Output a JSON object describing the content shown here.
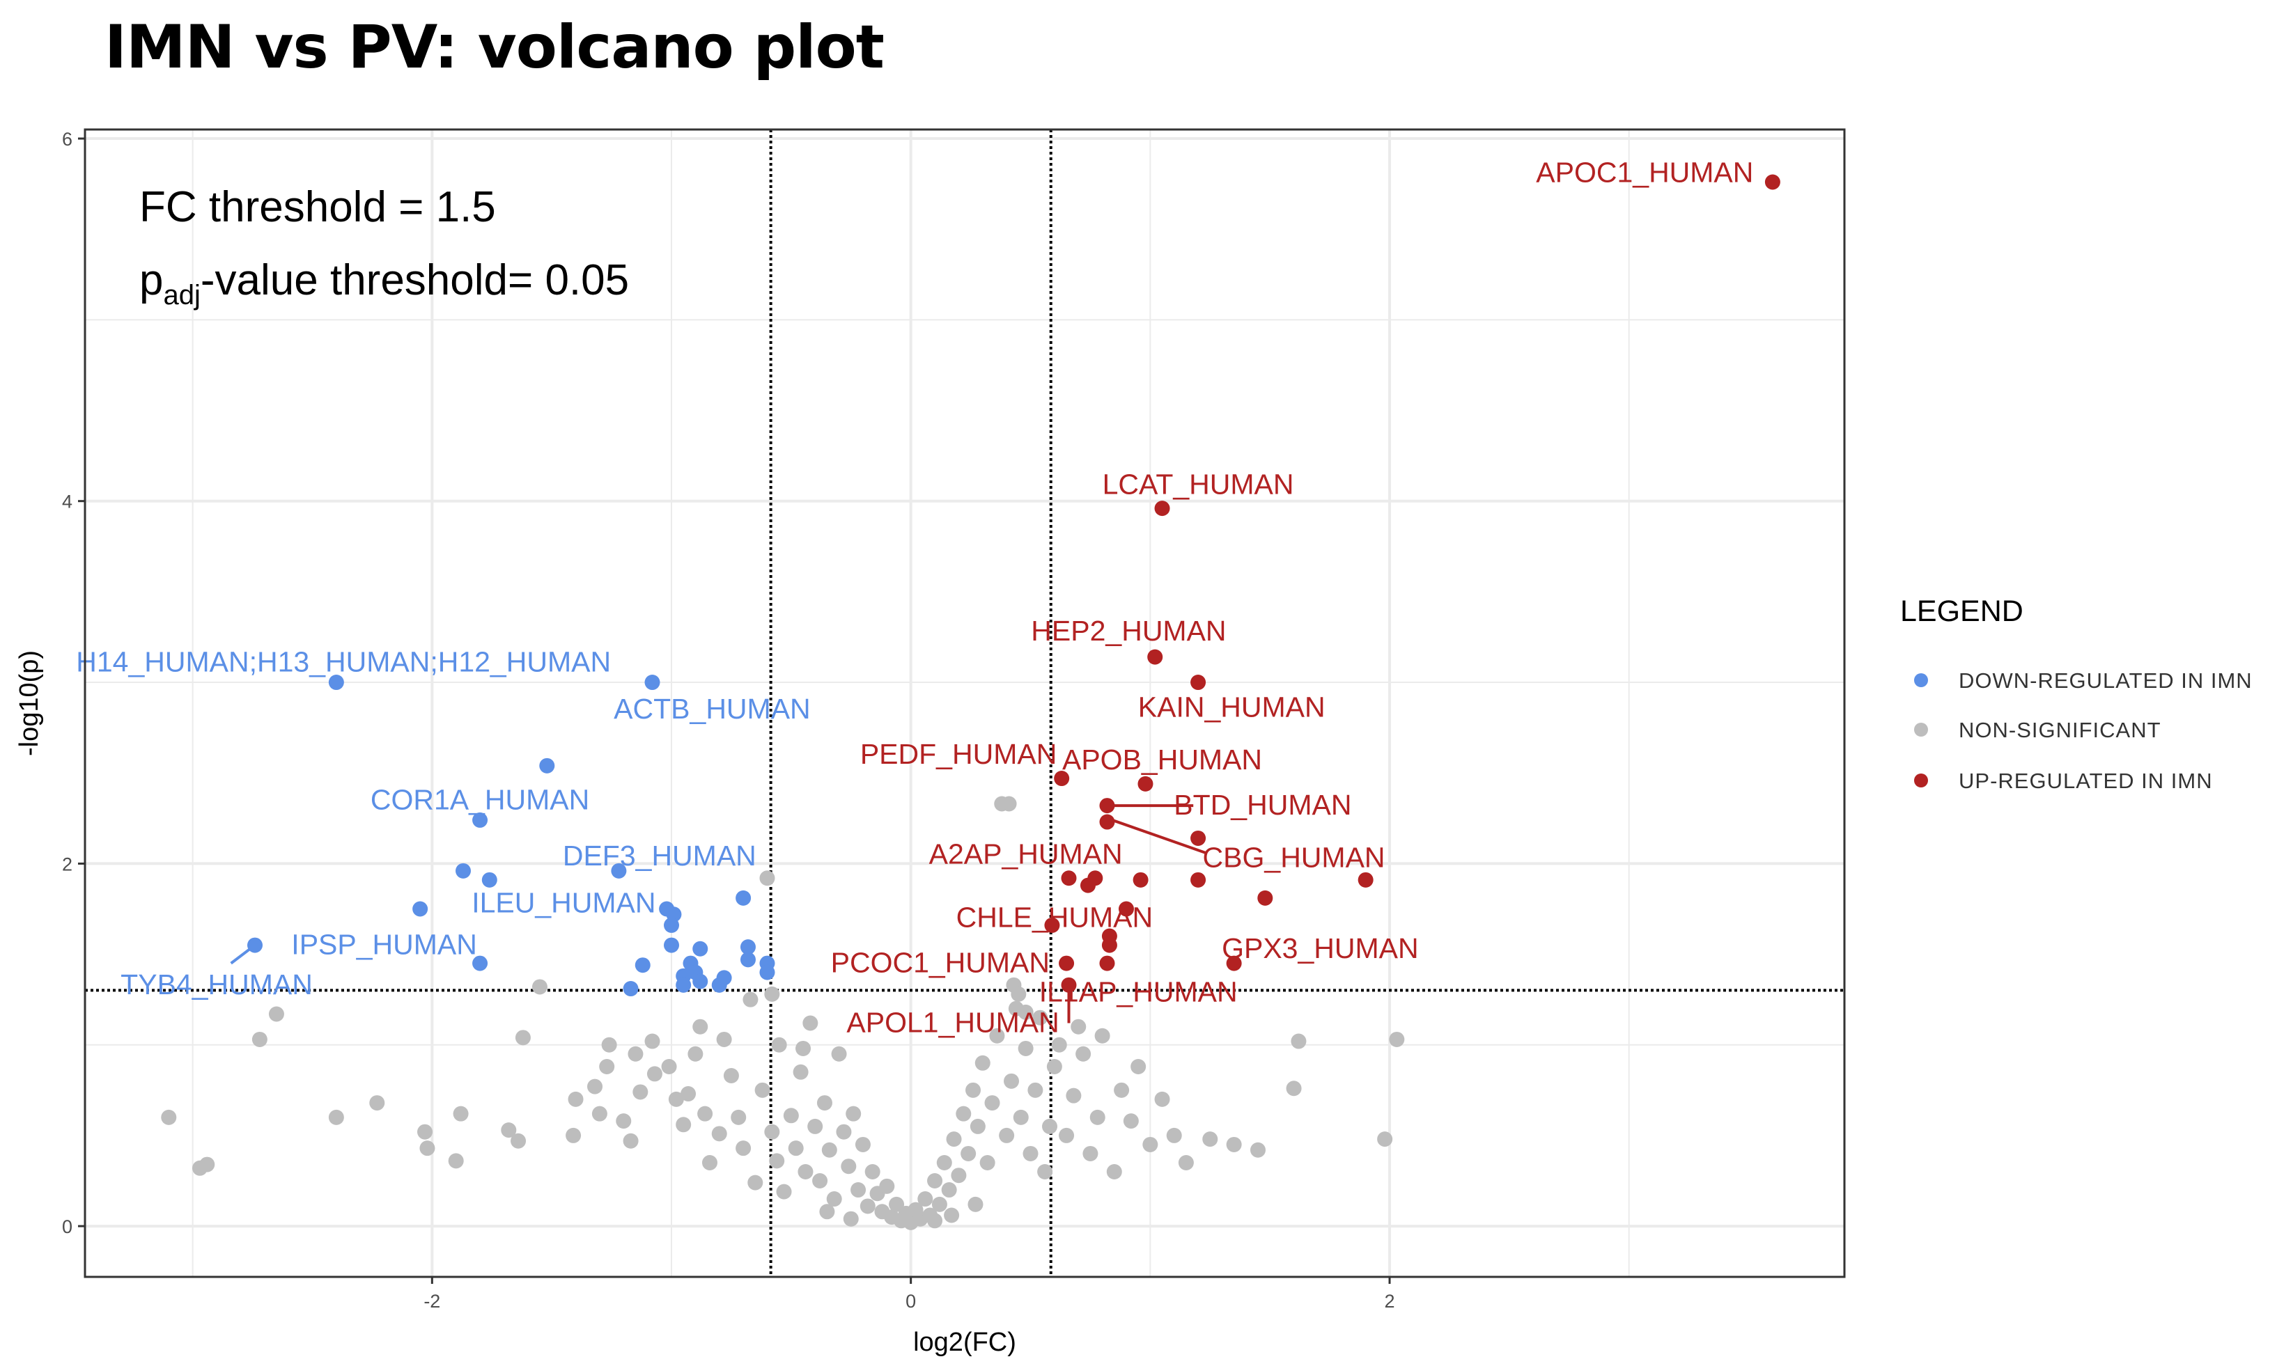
{
  "title": "IMN vs PV: volcano plot",
  "annotations": {
    "fc_line": "FC threshold = 1.5",
    "padj_prefix": "p",
    "padj_sub": "adj",
    "padj_suffix": "-value threshold= 0.05"
  },
  "colors": {
    "down": "#5b8fe6",
    "up": "#b22222",
    "ns": "#bdbdbd",
    "grid": "#ebebeb",
    "threshold": "#000000"
  },
  "chart_data": {
    "type": "scatter",
    "title": "IMN vs PV: volcano plot",
    "xlabel": "log2(FC)",
    "ylabel": "-log10(p)",
    "xlim": [
      -3.45,
      3.9
    ],
    "ylim": [
      -0.28,
      6.05
    ],
    "x_ticks": [
      -2,
      0,
      2
    ],
    "x_tick_labels": [
      "-2",
      "0",
      "2"
    ],
    "y_ticks": [
      0,
      2,
      4,
      6
    ],
    "y_tick_labels": [
      "0",
      "2",
      "4",
      "6"
    ],
    "thresholds": {
      "x": [
        -0.585,
        0.585
      ],
      "y": 1.301
    },
    "legend": {
      "title": "LEGEND",
      "entries": [
        {
          "label": "DOWN-REGULATED IN IMN",
          "group": "down"
        },
        {
          "label": "NON-SIGNIFICANT",
          "group": "ns"
        },
        {
          "label": "UP-REGULATED IN IMN",
          "group": "up"
        }
      ]
    },
    "up_points": [
      [
        3.6,
        5.76
      ],
      [
        1.05,
        3.96
      ],
      [
        1.02,
        3.14
      ],
      [
        1.2,
        3.0
      ],
      [
        0.63,
        2.47
      ],
      [
        0.98,
        2.44
      ],
      [
        0.82,
        2.32
      ],
      [
        0.82,
        2.23
      ],
      [
        1.2,
        2.14
      ],
      [
        0.66,
        1.92
      ],
      [
        0.74,
        1.88
      ],
      [
        0.77,
        1.92
      ],
      [
        0.96,
        1.91
      ],
      [
        1.2,
        1.91
      ],
      [
        1.48,
        1.81
      ],
      [
        1.9,
        1.91
      ],
      [
        0.9,
        1.75
      ],
      [
        0.59,
        1.66
      ],
      [
        0.83,
        1.6
      ],
      [
        0.83,
        1.55
      ],
      [
        0.65,
        1.45
      ],
      [
        0.82,
        1.45
      ],
      [
        1.35,
        1.45
      ],
      [
        0.66,
        1.33
      ]
    ],
    "down_points": [
      [
        -2.4,
        3.0
      ],
      [
        -1.08,
        3.0
      ],
      [
        -1.52,
        2.54
      ],
      [
        -1.8,
        2.24
      ],
      [
        -1.87,
        1.96
      ],
      [
        -1.76,
        1.91
      ],
      [
        -1.22,
        1.96
      ],
      [
        -2.05,
        1.75
      ],
      [
        -1.02,
        1.75
      ],
      [
        -0.99,
        1.72
      ],
      [
        -0.7,
        1.81
      ],
      [
        -2.74,
        1.55
      ],
      [
        -1.0,
        1.66
      ],
      [
        -1.8,
        1.45
      ],
      [
        -1.12,
        1.44
      ],
      [
        -1.0,
        1.55
      ],
      [
        -0.88,
        1.53
      ],
      [
        -0.68,
        1.54
      ],
      [
        -0.68,
        1.47
      ],
      [
        -0.6,
        1.45
      ],
      [
        -0.92,
        1.45
      ],
      [
        -0.9,
        1.4
      ],
      [
        -0.95,
        1.38
      ],
      [
        -0.95,
        1.33
      ],
      [
        -0.8,
        1.33
      ],
      [
        -0.78,
        1.37
      ],
      [
        -0.6,
        1.4
      ],
      [
        -1.17,
        1.31
      ],
      [
        -0.88,
        1.35
      ]
    ],
    "ns_points": [
      [
        -3.1,
        0.6
      ],
      [
        -2.97,
        0.32
      ],
      [
        -2.94,
        0.34
      ],
      [
        -2.72,
        1.03
      ],
      [
        -2.65,
        1.17
      ],
      [
        -2.4,
        0.6
      ],
      [
        -2.23,
        0.68
      ],
      [
        -2.03,
        0.52
      ],
      [
        -2.02,
        0.43
      ],
      [
        -1.9,
        0.36
      ],
      [
        -1.88,
        0.62
      ],
      [
        -1.68,
        0.53
      ],
      [
        -1.64,
        0.47
      ],
      [
        -1.62,
        1.04
      ],
      [
        -1.55,
        1.32
      ],
      [
        -1.41,
        0.5
      ],
      [
        -1.4,
        0.7
      ],
      [
        -1.32,
        0.77
      ],
      [
        -1.3,
        0.62
      ],
      [
        -1.27,
        0.88
      ],
      [
        -1.26,
        1.0
      ],
      [
        -1.2,
        0.58
      ],
      [
        -1.17,
        0.47
      ],
      [
        -1.15,
        0.95
      ],
      [
        -1.13,
        0.74
      ],
      [
        -1.08,
        1.02
      ],
      [
        -1.07,
        0.84
      ],
      [
        -1.01,
        0.88
      ],
      [
        -0.98,
        0.7
      ],
      [
        -0.95,
        0.56
      ],
      [
        -0.93,
        0.73
      ],
      [
        -0.9,
        0.95
      ],
      [
        -0.88,
        1.1
      ],
      [
        -0.86,
        0.62
      ],
      [
        -0.84,
        0.35
      ],
      [
        -0.8,
        0.51
      ],
      [
        -0.78,
        1.03
      ],
      [
        -0.75,
        0.83
      ],
      [
        -0.72,
        0.6
      ],
      [
        -0.7,
        0.43
      ],
      [
        -0.67,
        1.25
      ],
      [
        -0.65,
        0.24
      ],
      [
        -0.62,
        0.75
      ],
      [
        -0.6,
        1.92
      ],
      [
        -0.58,
        0.52
      ],
      [
        -0.56,
        0.36
      ],
      [
        -0.55,
        1.0
      ],
      [
        -0.53,
        0.19
      ],
      [
        -0.5,
        0.61
      ],
      [
        -0.48,
        0.43
      ],
      [
        -0.46,
        0.85
      ],
      [
        -0.44,
        0.3
      ],
      [
        -0.42,
        1.12
      ],
      [
        -0.4,
        0.55
      ],
      [
        -0.38,
        0.25
      ],
      [
        -0.36,
        0.68
      ],
      [
        -0.34,
        0.42
      ],
      [
        -0.32,
        0.15
      ],
      [
        -0.3,
        0.95
      ],
      [
        -0.28,
        0.52
      ],
      [
        -0.26,
        0.33
      ],
      [
        -0.24,
        0.62
      ],
      [
        -0.22,
        0.2
      ],
      [
        -0.2,
        0.45
      ],
      [
        -0.18,
        0.11
      ],
      [
        -0.16,
        0.3
      ],
      [
        -0.14,
        0.18
      ],
      [
        -0.12,
        0.08
      ],
      [
        -0.1,
        0.22
      ],
      [
        -0.08,
        0.05
      ],
      [
        -0.06,
        0.12
      ],
      [
        -0.04,
        0.03
      ],
      [
        -0.02,
        0.07
      ],
      [
        0.0,
        0.02
      ],
      [
        0.02,
        0.09
      ],
      [
        0.04,
        0.04
      ],
      [
        0.06,
        0.15
      ],
      [
        0.08,
        0.06
      ],
      [
        0.1,
        0.25
      ],
      [
        0.12,
        0.12
      ],
      [
        0.14,
        0.35
      ],
      [
        0.16,
        0.2
      ],
      [
        0.18,
        0.48
      ],
      [
        0.2,
        0.28
      ],
      [
        0.22,
        0.62
      ],
      [
        0.24,
        0.4
      ],
      [
        0.26,
        0.75
      ],
      [
        0.28,
        0.55
      ],
      [
        0.3,
        0.9
      ],
      [
        0.32,
        0.35
      ],
      [
        0.34,
        0.68
      ],
      [
        0.36,
        1.05
      ],
      [
        0.38,
        2.33
      ],
      [
        0.4,
        0.5
      ],
      [
        0.42,
        0.8
      ],
      [
        0.44,
        1.2
      ],
      [
        0.46,
        0.6
      ],
      [
        0.48,
        0.98
      ],
      [
        0.5,
        0.4
      ],
      [
        0.52,
        0.75
      ],
      [
        0.54,
        1.15
      ],
      [
        0.56,
        0.3
      ],
      [
        0.58,
        0.55
      ],
      [
        0.6,
        0.88
      ],
      [
        0.62,
        1.0
      ],
      [
        0.65,
        0.5
      ],
      [
        0.68,
        0.72
      ],
      [
        0.72,
        0.95
      ],
      [
        0.75,
        0.4
      ],
      [
        0.78,
        0.6
      ],
      [
        0.8,
        1.05
      ],
      [
        0.85,
        0.3
      ],
      [
        0.88,
        0.75
      ],
      [
        0.92,
        0.58
      ],
      [
        0.95,
        0.88
      ],
      [
        1.0,
        0.45
      ],
      [
        1.05,
        0.7
      ],
      [
        1.1,
        0.5
      ],
      [
        1.15,
        0.35
      ],
      [
        1.25,
        0.48
      ],
      [
        1.35,
        0.45
      ],
      [
        1.45,
        0.42
      ],
      [
        1.6,
        0.76
      ],
      [
        1.62,
        1.02
      ],
      [
        1.98,
        0.48
      ],
      [
        2.03,
        1.03
      ],
      [
        0.41,
        2.33
      ],
      [
        0.43,
        1.33
      ],
      [
        0.45,
        1.28
      ],
      [
        -0.58,
        1.28
      ],
      [
        0.48,
        1.18
      ],
      [
        0.7,
        1.1
      ],
      [
        -0.45,
        0.98
      ],
      [
        0.27,
        0.12
      ],
      [
        -0.35,
        0.08
      ],
      [
        0.17,
        0.06
      ],
      [
        -0.25,
        0.04
      ],
      [
        0.1,
        0.03
      ]
    ],
    "labels": [
      {
        "text": "APOC1_HUMAN",
        "group": "up",
        "anchor": "end",
        "x": 3.52,
        "y": 5.76
      },
      {
        "text": "LCAT_HUMAN",
        "group": "up",
        "anchor": "middle",
        "x": 1.2,
        "y": 4.04
      },
      {
        "text": "HEP2_HUMAN",
        "group": "up",
        "anchor": "middle",
        "x": 0.91,
        "y": 3.23
      },
      {
        "text": "KAIN_HUMAN",
        "group": "up",
        "anchor": "middle",
        "x": 1.34,
        "y": 2.81
      },
      {
        "text": "PEDF_HUMAN",
        "group": "up",
        "anchor": "end",
        "x": 0.61,
        "y": 2.55
      },
      {
        "text": "APOB_HUMAN",
        "group": "up",
        "anchor": "middle",
        "x": 1.05,
        "y": 2.52
      },
      {
        "text": "BTD_HUMAN",
        "group": "up",
        "anchor": "middle",
        "x": 1.47,
        "y": 2.27
      },
      {
        "text": "CBG_HUMAN",
        "group": "up",
        "anchor": "middle",
        "x": 1.6,
        "y": 1.98
      },
      {
        "text": "A2AP_HUMAN",
        "group": "up",
        "anchor": "middle",
        "x": 0.48,
        "y": 2.0
      },
      {
        "text": "CHLE_HUMAN",
        "group": "up",
        "anchor": "middle",
        "x": 0.6,
        "y": 1.65
      },
      {
        "text": "GPX3_HUMAN",
        "group": "up",
        "anchor": "middle",
        "x": 1.71,
        "y": 1.48
      },
      {
        "text": "PCOC1_HUMAN",
        "group": "up",
        "anchor": "end",
        "x": 0.58,
        "y": 1.4
      },
      {
        "text": "IL1AP_HUMAN",
        "group": "up",
        "anchor": "middle",
        "x": 0.95,
        "y": 1.24
      },
      {
        "text": "APOL1_HUMAN",
        "group": "up",
        "anchor": "end",
        "x": 0.62,
        "y": 1.07
      },
      {
        "text": "H14_HUMAN;H13_HUMAN;H12_HUMAN",
        "group": "down",
        "anchor": "middle",
        "x": -2.37,
        "y": 3.06
      },
      {
        "text": "ACTB_HUMAN",
        "group": "down",
        "anchor": "middle",
        "x": -0.83,
        "y": 2.8
      },
      {
        "text": "COR1A_HUMAN",
        "group": "down",
        "anchor": "middle",
        "x": -1.8,
        "y": 2.3
      },
      {
        "text": "DEF3_HUMAN",
        "group": "down",
        "anchor": "middle",
        "x": -1.05,
        "y": 1.99
      },
      {
        "text": "ILEU_HUMAN",
        "group": "down",
        "anchor": "middle",
        "x": -1.45,
        "y": 1.73
      },
      {
        "text": "IPSP_HUMAN",
        "group": "down",
        "anchor": "middle",
        "x": -2.2,
        "y": 1.5
      },
      {
        "text": "TYB4_HUMAN",
        "group": "down",
        "anchor": "middle",
        "x": -2.9,
        "y": 1.28
      }
    ],
    "connectors": [
      {
        "group": "up",
        "from": [
          0.84,
          2.32
        ],
        "to": [
          1.18,
          2.32
        ]
      },
      {
        "group": "up",
        "from": [
          0.82,
          2.25
        ],
        "to": [
          1.23,
          2.06
        ]
      },
      {
        "group": "up",
        "from": [
          0.66,
          1.33
        ],
        "to": [
          0.66,
          1.12
        ]
      },
      {
        "group": "down",
        "from": [
          -2.74,
          1.55
        ],
        "to": [
          -2.84,
          1.45
        ]
      }
    ]
  }
}
